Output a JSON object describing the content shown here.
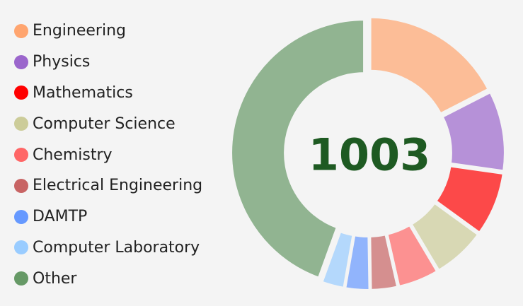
{
  "chart_data": {
    "type": "pie",
    "variant": "donut",
    "total_label": "1003",
    "total_color": "#1e5a22",
    "legend_placement": "left",
    "categories": [
      "Engineering",
      "Physics",
      "Mathematics",
      "Computer Science",
      "Chemistry",
      "Electrical Engineering",
      "DAMTP",
      "Computer Laboratory",
      "Other"
    ],
    "values": [
      175,
      98,
      78,
      65,
      50,
      33,
      30,
      28,
      446
    ],
    "colors": [
      "#ffa56f",
      "#9b66cc",
      "#ff0000",
      "#cccc99",
      "#ff6666",
      "#c86464",
      "#6699ff",
      "#99ccff",
      "#669966"
    ],
    "slice_opacity": 0.7,
    "legend_opacity": 1
  }
}
